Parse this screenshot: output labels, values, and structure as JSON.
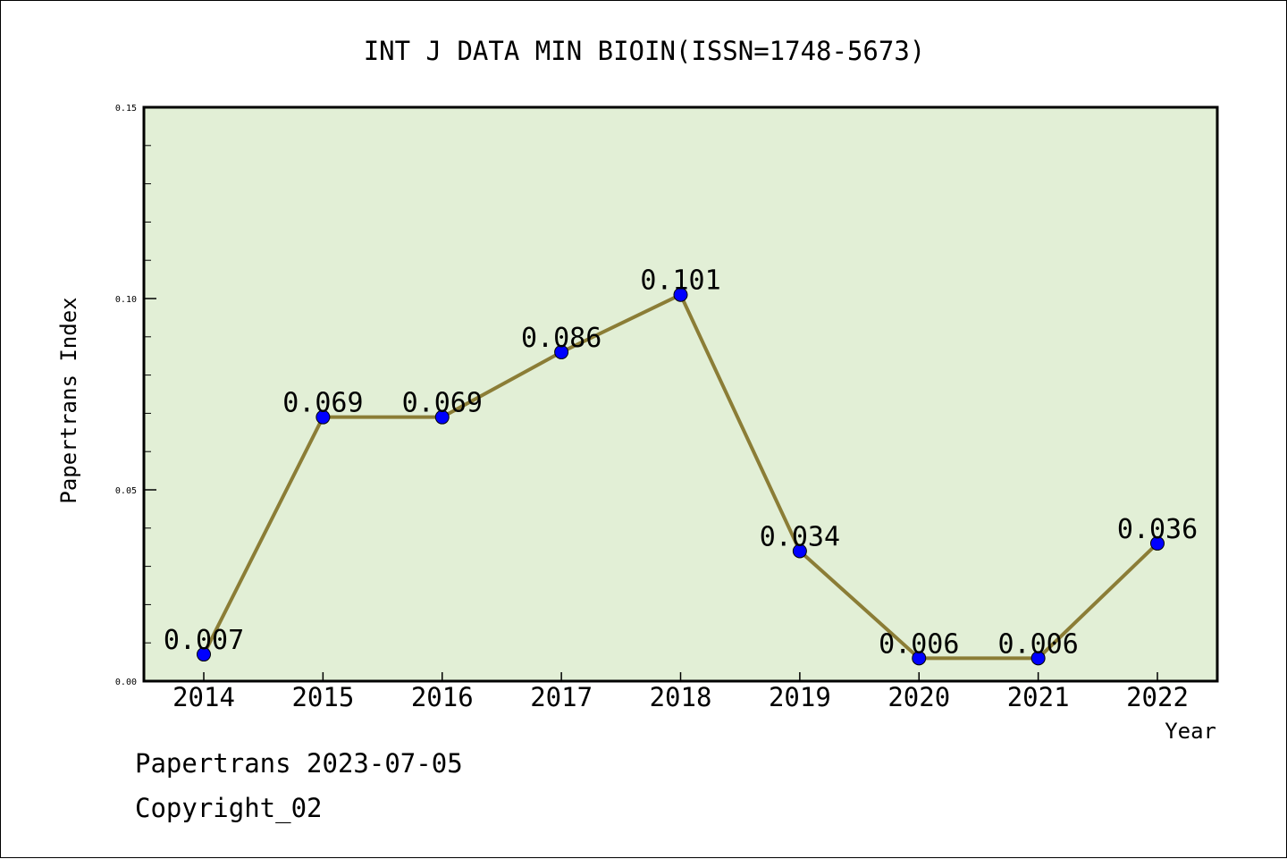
{
  "chart_data": {
    "type": "line",
    "title": "INT J DATA MIN BIOIN(ISSN=1748-5673)",
    "xlabel": "Year",
    "ylabel": "Papertrans Index",
    "categories": [
      "2014",
      "2015",
      "2016",
      "2017",
      "2018",
      "2019",
      "2020",
      "2021",
      "2022"
    ],
    "values": [
      0.007,
      0.069,
      0.069,
      0.086,
      0.101,
      0.034,
      0.006,
      0.006,
      0.036
    ],
    "data_labels": [
      "0.007",
      "0.069",
      "0.069",
      "0.086",
      "0.101",
      "0.034",
      "0.006",
      "0.006",
      "0.036"
    ],
    "ylim": [
      0,
      0.15
    ],
    "y_ticks": [
      0.0,
      0.05,
      0.1,
      0.15
    ],
    "y_tick_labels": [
      "0.00",
      "0.05",
      "0.10",
      "0.15"
    ],
    "y_minor_step": 0.01,
    "grid": false,
    "colors": {
      "plot_background": "#e2efd6",
      "line": "#8b7d36",
      "marker": "#0000ff"
    }
  },
  "footer": {
    "source_line": "Papertrans 2023-07-05",
    "copyright_line": "Copyright_02"
  }
}
